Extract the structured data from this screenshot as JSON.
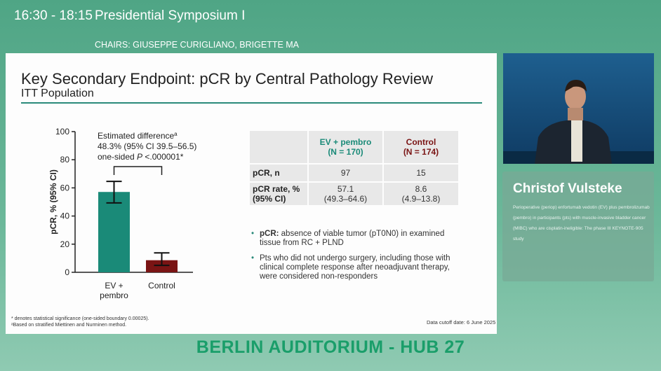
{
  "header": {
    "time": "16:30 - 18:15",
    "session": "Presidential Symposium I",
    "chairs": "CHAIRS: GIUSEPPE CURIGLIANO, BRIGETTE MA"
  },
  "slide": {
    "title": "Key Secondary Endpoint: pCR by Central Pathology Review",
    "subtitle": "ITT Population",
    "table": {
      "headers": [
        [
          "EV + pembro",
          "(N = 170)"
        ],
        [
          "Control",
          "(N = 174)"
        ]
      ],
      "rows": [
        {
          "label": [
            "pCR, n"
          ],
          "values": [
            [
              "97"
            ],
            [
              "15"
            ]
          ]
        },
        {
          "label": [
            "pCR rate, %",
            "(95% CI)"
          ],
          "values": [
            [
              "57.1",
              "(49.3–64.6)"
            ],
            [
              "8.6",
              "(4.9–13.8)"
            ]
          ]
        }
      ]
    },
    "bullets": [
      {
        "bold": "pCR:",
        "text": " absence of viable tumor (pT0N0) in examined tissue from RC + PLND"
      },
      {
        "bold": "",
        "text": "Pts who did not undergo surgery, including those with clinical complete response after neoadjuvant therapy, were considered non-responders"
      }
    ],
    "footnotes": [
      "* denotes statistical significance (one-sided boundary 0.00025).",
      "ᵃBased on stratified Miettinen and Nurminen method."
    ],
    "cutoff": "Data cutoff date: 6 June 2025"
  },
  "chart_data": {
    "type": "bar",
    "categories": [
      "EV + pembro",
      "Control"
    ],
    "category_labels": [
      [
        "EV +",
        "pembro"
      ],
      [
        "Control"
      ]
    ],
    "values": [
      57.1,
      8.6
    ],
    "ci_low": [
      49.3,
      4.9
    ],
    "ci_high": [
      64.6,
      13.8
    ],
    "colors": [
      "#1a8a78",
      "#7a1414"
    ],
    "ylabel": "pCR, % (95% CI)",
    "ylim": [
      0,
      100
    ],
    "yticks": [
      0,
      20,
      40,
      60,
      80,
      100
    ],
    "annotation": [
      "Estimated difference",
      "a",
      "48.3% (95% CI 39.5–56.5)",
      "one-sided ",
      "P",
      " <.000001*"
    ]
  },
  "speaker": {
    "name": "Christof Vulsteke",
    "talk": "Perioperative (periop) enfortumab vedotin (EV) plus pembrolizumab (pembro) in participants (pts) with muscle-invasive bladder cancer (MIBC) who are cisplatin-ineligible: The phase III KEYNOTE-905 study"
  },
  "room": "BERLIN AUDITORIUM - HUB 27"
}
